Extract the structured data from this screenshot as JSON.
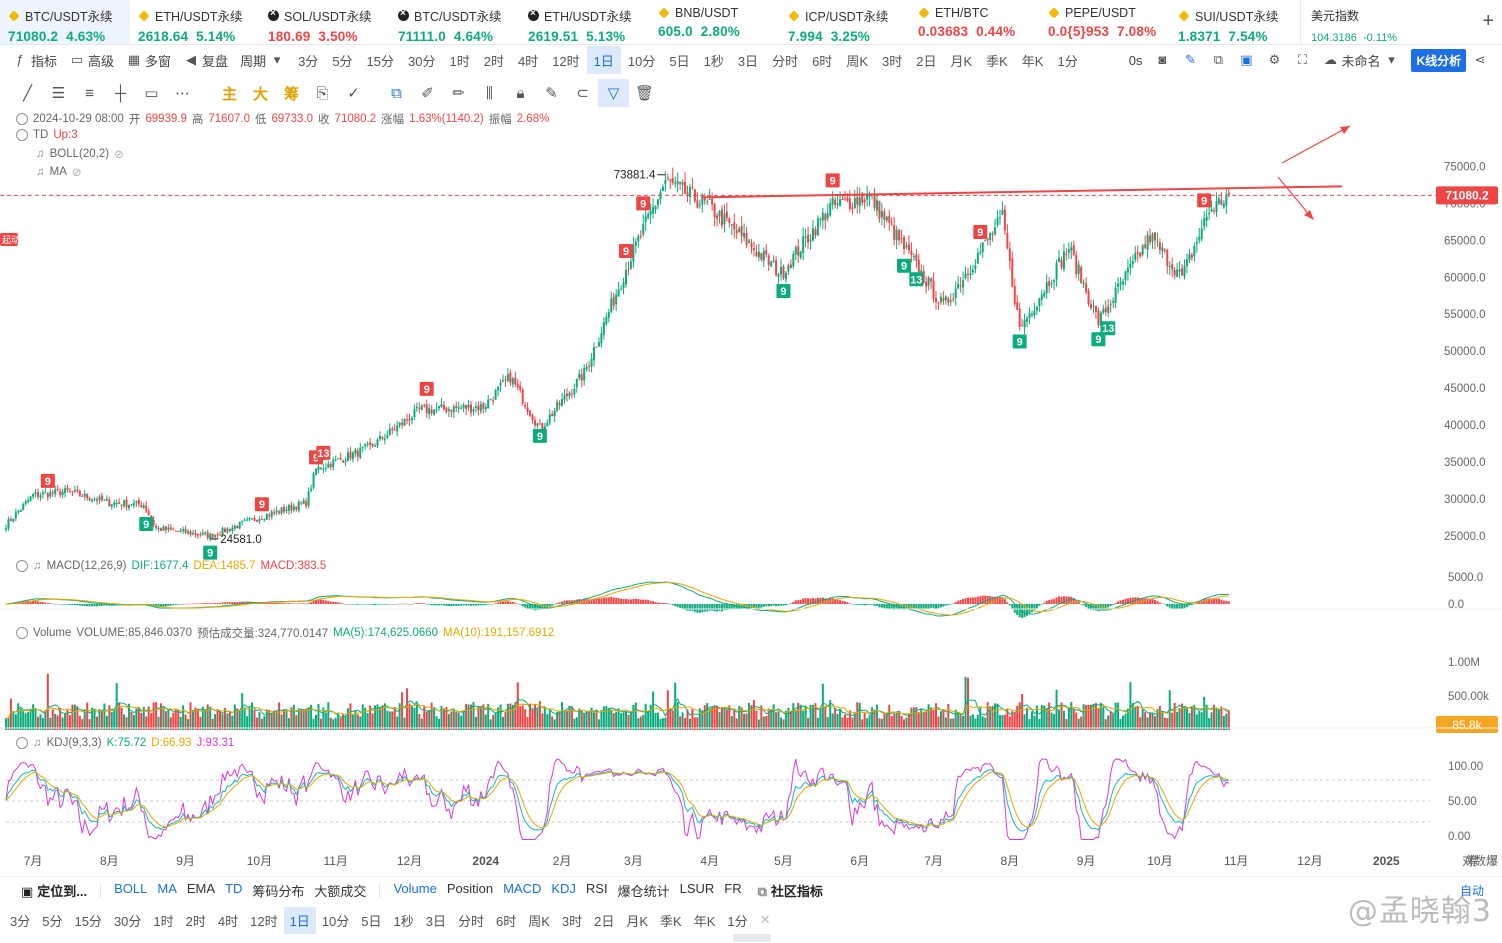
{
  "tickers": [
    {
      "name": "BTC/USDT永续",
      "price": "71080.2",
      "change": "4.63%",
      "icon": "btc-icon",
      "active": true
    },
    {
      "name": "ETH/USDT永续",
      "price": "2618.64",
      "change": "5.14%",
      "icon": "eth-icon"
    },
    {
      "name": "SOL/USDT永续",
      "price": "180.69",
      "change": "3.50%",
      "icon": "okx-icon",
      "price_color": "down"
    },
    {
      "name": "BTC/USDT永续",
      "price": "71111.0",
      "change": "4.64%",
      "icon": "okx-icon"
    },
    {
      "name": "ETH/USDT永续",
      "price": "2619.51",
      "change": "5.13%",
      "icon": "okx-icon"
    },
    {
      "name": "BNB/USDT",
      "price": "605.0",
      "change": "2.80%",
      "icon": "bnb-icon"
    },
    {
      "name": "ICP/USDT永续",
      "price": "7.994",
      "change": "3.25%",
      "icon": "icp-icon"
    },
    {
      "name": "ETH/BTC",
      "price": "0.03683",
      "change": "0.44%",
      "icon": "eth-icon",
      "price_color": "down"
    },
    {
      "name": "PEPE/USDT",
      "price": "0.0{5}953",
      "change": "7.08%",
      "icon": "pepe-icon",
      "price_color": "down"
    },
    {
      "name": "SUI/USDT永续",
      "price": "1.8371",
      "change": "7.54%",
      "icon": "sui-icon"
    }
  ],
  "usd_index": {
    "name": "美元指数",
    "value": "104.3186",
    "change": "-0.11%"
  },
  "toolbar": {
    "indicator": "指标",
    "advanced": "高级",
    "multi_window": "多窗",
    "replay": "复盘",
    "period_menu": "周期",
    "periods": [
      "3分",
      "5分",
      "15分",
      "30分",
      "1时",
      "2时",
      "4时",
      "12时",
      "1日",
      "10分",
      "5日",
      "1秒",
      "3日",
      "分时",
      "6时",
      "周K",
      "3时",
      "2日",
      "月K",
      "季K",
      "年K",
      "1分"
    ],
    "selected_period": "1日",
    "countdown": "0s",
    "layout_name": "未命名",
    "kline_analysis": "K线分析"
  },
  "draw_tools": {
    "main": "主",
    "large": "大",
    "chip": "筹"
  },
  "legend": {
    "date": "2024-10-29 08:00",
    "open_label": "开",
    "open": "69939.9",
    "high_label": "高",
    "high": "71607.0",
    "low_label": "低",
    "low": "69733.0",
    "close_label": "收",
    "close": "71080.2",
    "change_label": "涨幅",
    "change": "1.63%(1140.2)",
    "amplitude_label": "振幅",
    "amplitude": "2.68%",
    "td": "TD",
    "td_value": "Up:3",
    "boll": "BOLL(20,2)",
    "ma": "MA"
  },
  "macd": {
    "label": "MACD(12,26,9)",
    "dif": "DIF:1677.4",
    "dea": "DEA:1485.7",
    "macd": "MACD:383.5"
  },
  "volume": {
    "label": "Volume",
    "value": "VOLUME:85,846.0370",
    "estimate": "预估成交量:324,770.0147",
    "ma5": "MA(5):174,625.0660",
    "ma10": "MA(10):191,157.6912"
  },
  "kdj": {
    "label": "KDJ(9,3,3)",
    "k": "K:75.72",
    "d": "D:66.93",
    "j": "J:93.31"
  },
  "price_axis": [
    "75000.0",
    "70000.0",
    "65000.0",
    "60000.0",
    "55000.0",
    "50000.0",
    "45000.0",
    "40000.0",
    "35000.0",
    "30000.0",
    "25000.0"
  ],
  "macd_axis": [
    "5000.0",
    "0.0"
  ],
  "volume_axis": [
    "1.00M",
    "500.00k"
  ],
  "volume_last": "85.8k",
  "kdj_axis": [
    "100.00",
    "50.00",
    "0.00"
  ],
  "current_price_tag": "71080.2",
  "high_annotation": "73881.4",
  "low_annotation": "24581.0",
  "side_tag": "起动",
  "time_axis": [
    "7月",
    "8月",
    "9月",
    "10月",
    "11月",
    "12月",
    "2024",
    "2月",
    "3月",
    "4月",
    "5月",
    "6月",
    "7月",
    "8月",
    "9月",
    "10月",
    "11月",
    "12月",
    "2025"
  ],
  "td_markers": [
    "9",
    "13"
  ],
  "corner_labels": {
    "zoom": "筹",
    "expand": "爆"
  },
  "indicator_bar": {
    "locate": "定位到...",
    "items": [
      "BOLL",
      "MA",
      "EMA",
      "TD",
      "筹码分布",
      "大额成交"
    ],
    "items_on": [
      "BOLL",
      "MA",
      "TD"
    ],
    "sub_items": [
      "Volume",
      "Position",
      "MACD",
      "KDJ",
      "RSI",
      "爆仓统计",
      "LSUR",
      "FR"
    ],
    "sub_items_on": [
      "Volume",
      "MACD",
      "KDJ"
    ],
    "community": "社区指标",
    "log_label": "对数",
    "auto_label": "自动"
  },
  "period_bar": [
    "3分",
    "5分",
    "15分",
    "30分",
    "1时",
    "2时",
    "4时",
    "12时",
    "1日",
    "10分",
    "5日",
    "1秒",
    "3日",
    "分时",
    "6时",
    "周K",
    "3时",
    "2日",
    "月K",
    "季K",
    "年K",
    "1分"
  ],
  "period_bar_selected": "1日",
  "watermark": "@孟晓翰3",
  "colors": {
    "up": "#0cab7d",
    "down": "#ef4545",
    "accent": "#1e6fe6",
    "price_tag": "#ef4545",
    "volume_tag": "#f5a623"
  },
  "chart_data": {
    "type": "candlestick",
    "symbol": "BTC/USDT永续",
    "interval": "1日",
    "x_range": [
      "2023-06-20",
      "2024-10-29"
    ],
    "y_range": [
      22000,
      77500
    ],
    "monthly_path": [
      {
        "date": "2023-06-20",
        "close": 26500
      },
      {
        "date": "2023-07-01",
        "close": 30500
      },
      {
        "date": "2023-07-15",
        "close": 31000
      },
      {
        "date": "2023-08-01",
        "close": 29500
      },
      {
        "date": "2023-08-15",
        "close": 29200
      },
      {
        "date": "2023-08-20",
        "close": 26000
      },
      {
        "date": "2023-09-11",
        "close": 25000
      },
      {
        "date": "2023-10-01",
        "close": 27500
      },
      {
        "date": "2023-10-20",
        "close": 29500
      },
      {
        "date": "2023-10-24",
        "close": 34000
      },
      {
        "date": "2023-11-15",
        "close": 37000
      },
      {
        "date": "2023-12-05",
        "close": 42000
      },
      {
        "date": "2023-12-31",
        "close": 42500
      },
      {
        "date": "2024-01-11",
        "close": 46500
      },
      {
        "date": "2024-01-23",
        "close": 39500
      },
      {
        "date": "2024-02-10",
        "close": 47000
      },
      {
        "date": "2024-02-28",
        "close": 62000
      },
      {
        "date": "2024-03-14",
        "close": 73000
      },
      {
        "date": "2024-04-01",
        "close": 69500
      },
      {
        "date": "2024-04-30",
        "close": 60500
      },
      {
        "date": "2024-05-20",
        "close": 69500
      },
      {
        "date": "2024-06-05",
        "close": 71000
      },
      {
        "date": "2024-07-05",
        "close": 56000
      },
      {
        "date": "2024-07-29",
        "close": 68000
      },
      {
        "date": "2024-08-05",
        "close": 53000
      },
      {
        "date": "2024-08-25",
        "close": 64000
      },
      {
        "date": "2024-09-06",
        "close": 54000
      },
      {
        "date": "2024-09-27",
        "close": 65500
      },
      {
        "date": "2024-10-10",
        "close": 60000
      },
      {
        "date": "2024-10-21",
        "close": 69000
      },
      {
        "date": "2024-10-29",
        "close": 71080.2
      }
    ],
    "resistance_level": 71500,
    "last_close": 71080.2,
    "high": {
      "value": 73881.4,
      "date": "2024-03-14"
    },
    "low": {
      "value": 24581.0,
      "date": "2023-09-11"
    }
  }
}
